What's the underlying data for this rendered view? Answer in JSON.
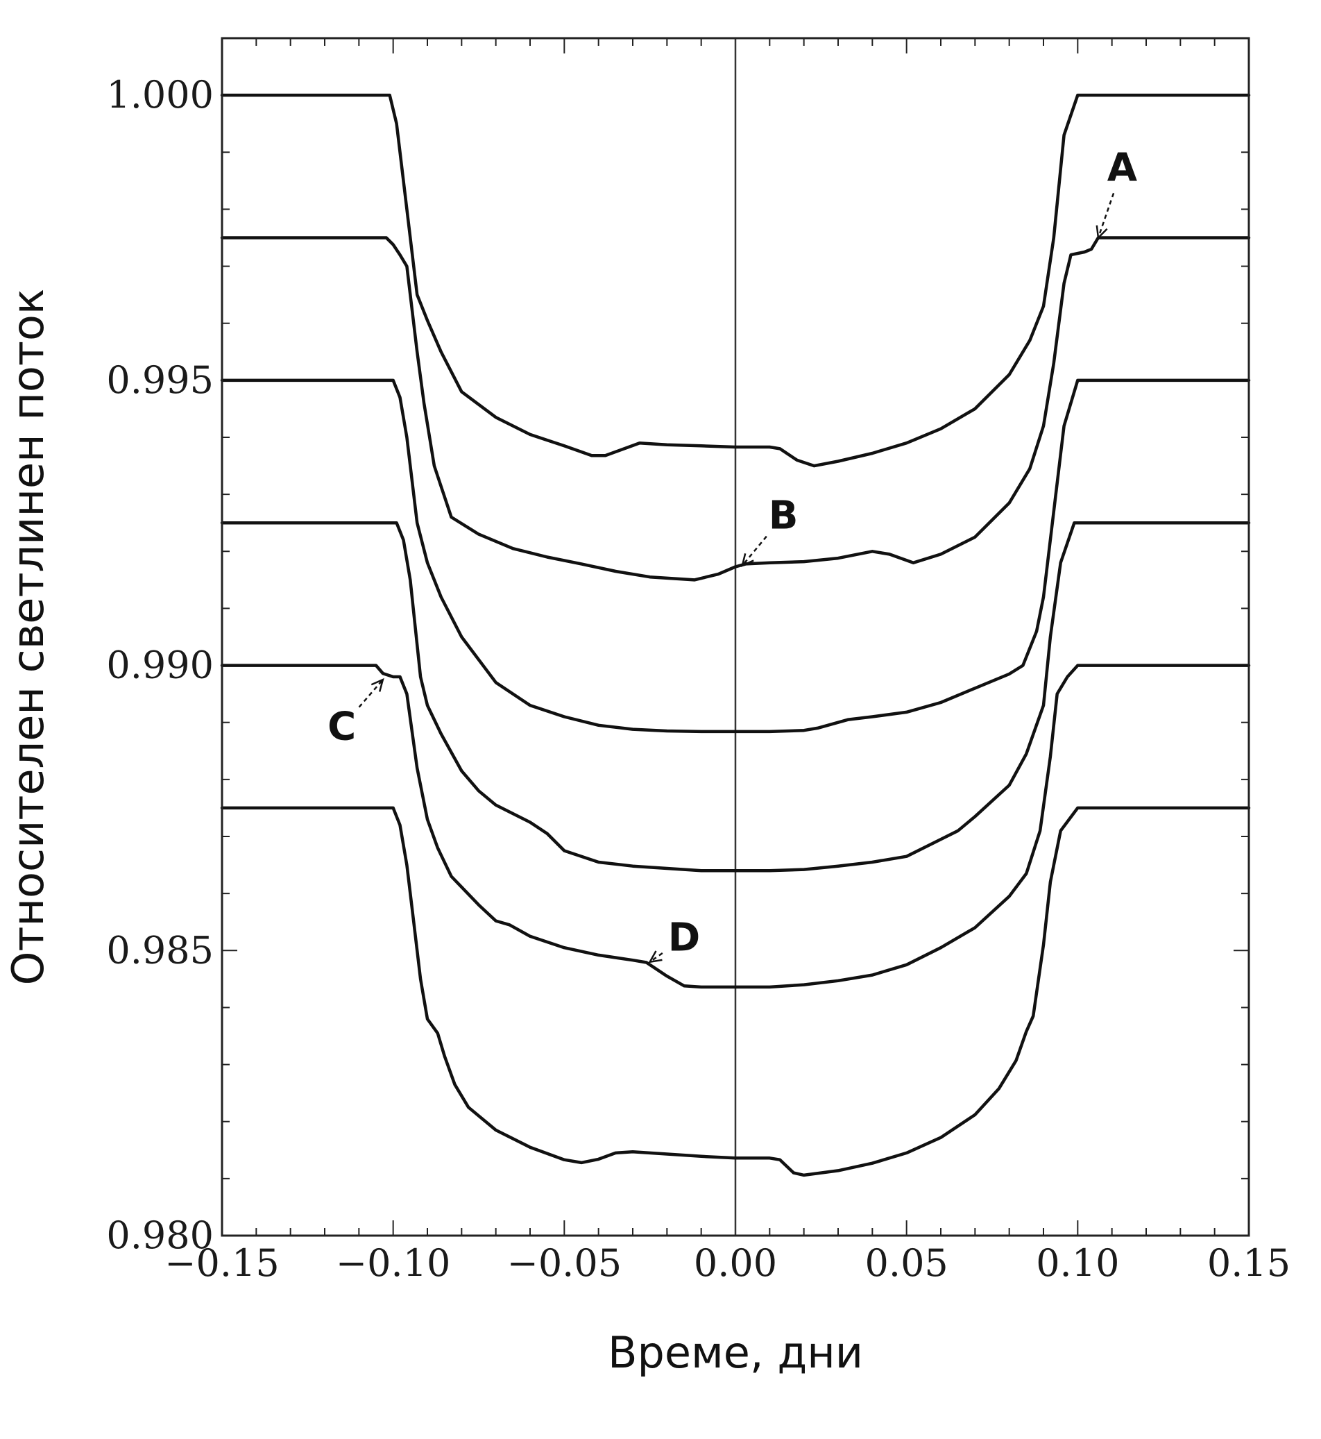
{
  "chart_data": {
    "type": "line",
    "xlabel": "Време, дни",
    "ylabel": "Относителен светлинен поток",
    "xlim": [
      -0.15,
      0.15
    ],
    "ylim": [
      0.98,
      1.001
    ],
    "x_ticks": [
      "−0.15",
      "−0.10",
      "−0.05",
      "0.00",
      "0.05",
      "0.10",
      "0.15"
    ],
    "y_ticks": [
      "1.000",
      "0.995",
      "0.990",
      "0.985",
      "0.980"
    ],
    "y_tick_values": [
      1.0,
      0.995,
      0.99,
      0.985,
      0.98
    ],
    "x_tick_values": [
      -0.15,
      -0.1,
      -0.05,
      0.0,
      0.05,
      0.1,
      0.15
    ],
    "grid": false,
    "vertical_line_x": 0.0,
    "series": [
      {
        "points": [
          [
            -0.15,
            1.0
          ],
          [
            -0.101,
            1.0
          ],
          [
            -0.099,
            0.9995
          ],
          [
            -0.096,
            0.998
          ],
          [
            -0.093,
            0.9965
          ],
          [
            -0.09,
            0.99605
          ],
          [
            -0.086,
            0.9955
          ],
          [
            -0.08,
            0.9948
          ],
          [
            -0.07,
            0.99435
          ],
          [
            -0.06,
            0.99405
          ],
          [
            -0.05,
            0.99385
          ],
          [
            -0.042,
            0.99368
          ],
          [
            -0.038,
            0.99368
          ],
          [
            -0.028,
            0.9939
          ],
          [
            -0.02,
            0.99387
          ],
          [
            -0.01,
            0.99385
          ],
          [
            0.0,
            0.99383
          ],
          [
            0.01,
            0.99383
          ],
          [
            0.013,
            0.9938
          ],
          [
            0.018,
            0.9936
          ],
          [
            0.023,
            0.9935
          ],
          [
            0.03,
            0.99358
          ],
          [
            0.04,
            0.99372
          ],
          [
            0.05,
            0.9939
          ],
          [
            0.06,
            0.99415
          ],
          [
            0.07,
            0.9945
          ],
          [
            0.08,
            0.9951
          ],
          [
            0.086,
            0.9957
          ],
          [
            0.09,
            0.9963
          ],
          [
            0.093,
            0.9975
          ],
          [
            0.096,
            0.9993
          ],
          [
            0.1,
            1.0
          ],
          [
            0.15,
            1.0
          ]
        ]
      },
      {
        "points": [
          [
            -0.15,
            0.9975
          ],
          [
            -0.102,
            0.9975
          ],
          [
            -0.1,
            0.99738
          ],
          [
            -0.098,
            0.9972
          ],
          [
            -0.096,
            0.997
          ],
          [
            -0.093,
            0.9955
          ],
          [
            -0.091,
            0.9946
          ],
          [
            -0.088,
            0.9935
          ],
          [
            -0.083,
            0.9926
          ],
          [
            -0.075,
            0.9923
          ],
          [
            -0.065,
            0.99205
          ],
          [
            -0.055,
            0.9919
          ],
          [
            -0.045,
            0.99178
          ],
          [
            -0.035,
            0.99165
          ],
          [
            -0.025,
            0.99155
          ],
          [
            -0.012,
            0.9915
          ],
          [
            -0.005,
            0.9916
          ],
          [
            0.0,
            0.99173
          ],
          [
            0.003,
            0.99178
          ],
          [
            0.01,
            0.9918
          ],
          [
            0.02,
            0.99182
          ],
          [
            0.03,
            0.99188
          ],
          [
            0.04,
            0.992
          ],
          [
            0.045,
            0.99195
          ],
          [
            0.052,
            0.9918
          ],
          [
            0.06,
            0.99195
          ],
          [
            0.07,
            0.99225
          ],
          [
            0.08,
            0.99285
          ],
          [
            0.086,
            0.99345
          ],
          [
            0.09,
            0.9942
          ],
          [
            0.093,
            0.9953
          ],
          [
            0.096,
            0.9967
          ],
          [
            0.098,
            0.9972
          ],
          [
            0.102,
            0.99725
          ],
          [
            0.104,
            0.9973
          ],
          [
            0.106,
            0.9975
          ],
          [
            0.15,
            0.9975
          ]
        ]
      },
      {
        "points": [
          [
            -0.15,
            0.995
          ],
          [
            -0.1,
            0.995
          ],
          [
            -0.098,
            0.9947
          ],
          [
            -0.096,
            0.994
          ],
          [
            -0.093,
            0.9925
          ],
          [
            -0.09,
            0.9918
          ],
          [
            -0.086,
            0.9912
          ],
          [
            -0.08,
            0.9905
          ],
          [
            -0.07,
            0.9897
          ],
          [
            -0.06,
            0.9893
          ],
          [
            -0.05,
            0.9891
          ],
          [
            -0.04,
            0.98895
          ],
          [
            -0.03,
            0.98888
          ],
          [
            -0.02,
            0.98885
          ],
          [
            -0.01,
            0.98884
          ],
          [
            0.0,
            0.98884
          ],
          [
            0.01,
            0.98884
          ],
          [
            0.02,
            0.98886
          ],
          [
            0.024,
            0.9889
          ],
          [
            0.03,
            0.989
          ],
          [
            0.033,
            0.98905
          ],
          [
            0.04,
            0.9891
          ],
          [
            0.05,
            0.98918
          ],
          [
            0.06,
            0.98935
          ],
          [
            0.07,
            0.9896
          ],
          [
            0.08,
            0.98985
          ],
          [
            0.084,
            0.99
          ],
          [
            0.088,
            0.9906
          ],
          [
            0.09,
            0.9912
          ],
          [
            0.093,
            0.9927
          ],
          [
            0.096,
            0.9942
          ],
          [
            0.1,
            0.995
          ],
          [
            0.15,
            0.995
          ]
        ]
      },
      {
        "points": [
          [
            -0.15,
            0.9925
          ],
          [
            -0.099,
            0.9925
          ],
          [
            -0.097,
            0.9922
          ],
          [
            -0.095,
            0.9915
          ],
          [
            -0.092,
            0.9898
          ],
          [
            -0.09,
            0.9893
          ],
          [
            -0.086,
            0.9888
          ],
          [
            -0.08,
            0.98815
          ],
          [
            -0.075,
            0.9878
          ],
          [
            -0.07,
            0.98755
          ],
          [
            -0.06,
            0.98725
          ],
          [
            -0.055,
            0.98705
          ],
          [
            -0.05,
            0.98675
          ],
          [
            -0.045,
            0.98665
          ],
          [
            -0.04,
            0.98655
          ],
          [
            -0.03,
            0.98648
          ],
          [
            -0.02,
            0.98644
          ],
          [
            -0.01,
            0.9864
          ],
          [
            0.0,
            0.9864
          ],
          [
            0.01,
            0.9864
          ],
          [
            0.02,
            0.98642
          ],
          [
            0.03,
            0.98648
          ],
          [
            0.04,
            0.98655
          ],
          [
            0.05,
            0.98665
          ],
          [
            0.06,
            0.98695
          ],
          [
            0.065,
            0.9871
          ],
          [
            0.07,
            0.98735
          ],
          [
            0.08,
            0.9879
          ],
          [
            0.085,
            0.98845
          ],
          [
            0.09,
            0.9893
          ],
          [
            0.092,
            0.9905
          ],
          [
            0.095,
            0.9918
          ],
          [
            0.099,
            0.9925
          ],
          [
            0.15,
            0.9925
          ]
        ]
      },
      {
        "points": [
          [
            -0.15,
            0.99
          ],
          [
            -0.105,
            0.99
          ],
          [
            -0.103,
            0.98986
          ],
          [
            -0.1,
            0.9898
          ],
          [
            -0.098,
            0.9898
          ],
          [
            -0.096,
            0.9895
          ],
          [
            -0.093,
            0.9882
          ],
          [
            -0.09,
            0.9873
          ],
          [
            -0.087,
            0.9868
          ],
          [
            -0.083,
            0.9863
          ],
          [
            -0.075,
            0.9858
          ],
          [
            -0.07,
            0.98552
          ],
          [
            -0.066,
            0.98545
          ],
          [
            -0.06,
            0.98525
          ],
          [
            -0.05,
            0.98505
          ],
          [
            -0.04,
            0.98492
          ],
          [
            -0.03,
            0.98483
          ],
          [
            -0.026,
            0.98479
          ],
          [
            -0.02,
            0.98455
          ],
          [
            -0.015,
            0.98438
          ],
          [
            -0.01,
            0.98436
          ],
          [
            0.0,
            0.98436
          ],
          [
            0.01,
            0.98436
          ],
          [
            0.02,
            0.9844
          ],
          [
            0.03,
            0.98447
          ],
          [
            0.04,
            0.98457
          ],
          [
            0.05,
            0.98475
          ],
          [
            0.06,
            0.98505
          ],
          [
            0.07,
            0.9854
          ],
          [
            0.08,
            0.98595
          ],
          [
            0.085,
            0.98635
          ],
          [
            0.089,
            0.9871
          ],
          [
            0.092,
            0.9884
          ],
          [
            0.094,
            0.9895
          ],
          [
            0.097,
            0.9898
          ],
          [
            0.1,
            0.99
          ],
          [
            0.15,
            0.99
          ]
        ]
      },
      {
        "points": [
          [
            -0.15,
            0.9875
          ],
          [
            -0.1,
            0.9875
          ],
          [
            -0.098,
            0.9872
          ],
          [
            -0.096,
            0.9865
          ],
          [
            -0.094,
            0.9855
          ],
          [
            -0.092,
            0.9845
          ],
          [
            -0.09,
            0.9838
          ],
          [
            -0.087,
            0.98355
          ],
          [
            -0.085,
            0.98315
          ],
          [
            -0.082,
            0.98265
          ],
          [
            -0.078,
            0.98225
          ],
          [
            -0.07,
            0.98185
          ],
          [
            -0.06,
            0.98155
          ],
          [
            -0.05,
            0.98133
          ],
          [
            -0.045,
            0.98128
          ],
          [
            -0.04,
            0.98134
          ],
          [
            -0.035,
            0.98145
          ],
          [
            -0.03,
            0.98147
          ],
          [
            -0.02,
            0.98143
          ],
          [
            -0.01,
            0.98139
          ],
          [
            0.0,
            0.98136
          ],
          [
            0.01,
            0.98136
          ],
          [
            0.013,
            0.98133
          ],
          [
            0.017,
            0.9811
          ],
          [
            0.02,
            0.98106
          ],
          [
            0.03,
            0.98114
          ],
          [
            0.04,
            0.98127
          ],
          [
            0.05,
            0.98145
          ],
          [
            0.06,
            0.98172
          ],
          [
            0.07,
            0.98212
          ],
          [
            0.077,
            0.98258
          ],
          [
            0.082,
            0.98307
          ],
          [
            0.085,
            0.98358
          ],
          [
            0.087,
            0.98385
          ],
          [
            0.09,
            0.9851
          ],
          [
            0.092,
            0.9862
          ],
          [
            0.095,
            0.9871
          ],
          [
            0.1,
            0.9875
          ],
          [
            0.15,
            0.9875
          ]
        ]
      }
    ],
    "annotations": [
      {
        "label": "A",
        "text_x": 0.113,
        "text_y": 0.9985,
        "point_x": 0.106,
        "point_y": 0.9975
      },
      {
        "label": "B",
        "text_x": 0.014,
        "text_y": 0.9924,
        "point_x": 0.002,
        "point_y": 0.99175
      },
      {
        "label": "C",
        "text_x": -0.115,
        "text_y": 0.9887,
        "point_x": -0.103,
        "point_y": 0.98975
      },
      {
        "label": "D",
        "text_x": -0.015,
        "text_y": 0.985,
        "point_x": -0.025,
        "point_y": 0.9848
      }
    ]
  }
}
